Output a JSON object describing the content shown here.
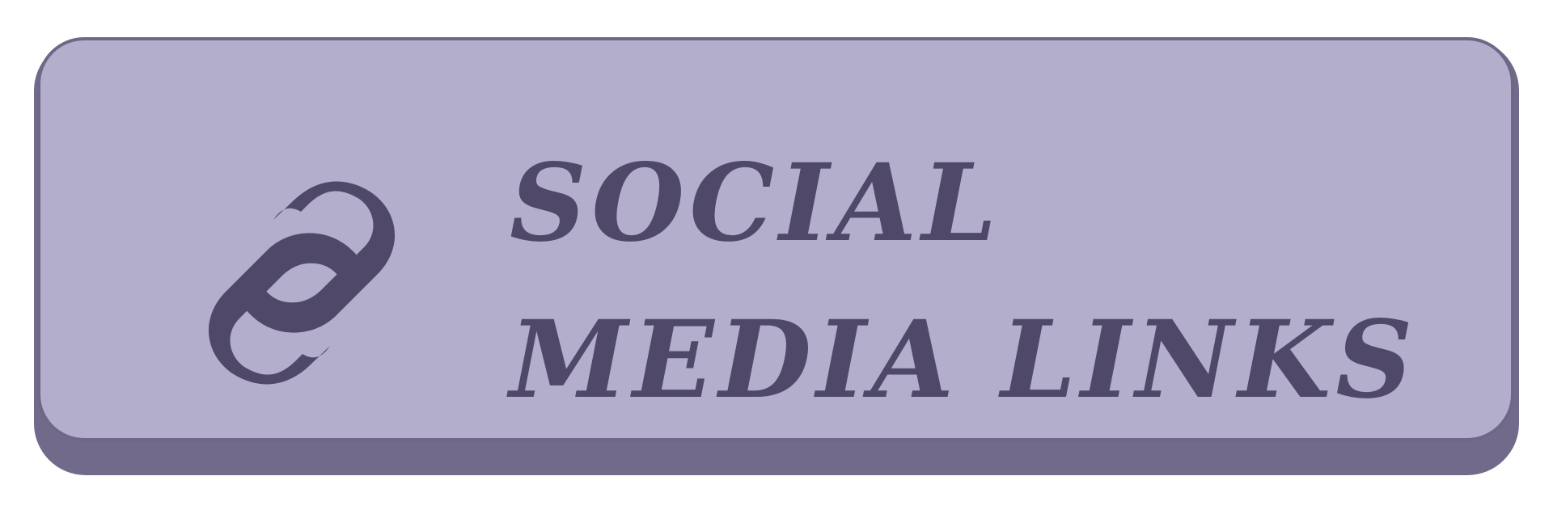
{
  "button": {
    "title_line1": "SOCIAL",
    "title_line2": "MEDIA LINKS",
    "icon": "link-chain-icon"
  },
  "colors": {
    "background": "#ffffff",
    "button_face": "#b4aecd",
    "button_shadow": "#726a8a",
    "button_border": "#6f6785",
    "text_and_icon": "#504868"
  }
}
